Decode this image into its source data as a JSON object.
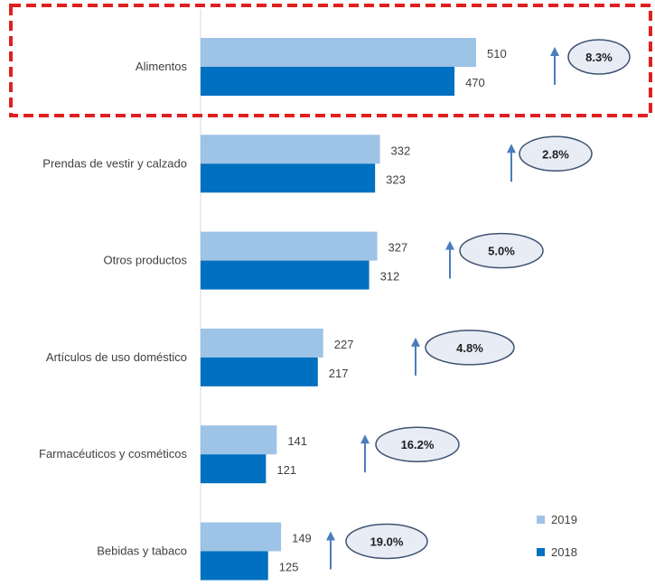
{
  "chart_data": {
    "type": "bar",
    "orientation": "horizontal",
    "categories": [
      "Alimentos",
      "Prendas de vestir y calzado",
      "Otros productos",
      "Artículos de uso doméstico",
      "Farmacéuticos y cosméticos",
      "Bebidas y tabaco"
    ],
    "series": [
      {
        "name": "2019",
        "color": "#9dc3e6",
        "values": [
          510,
          332,
          327,
          227,
          141,
          149
        ]
      },
      {
        "name": "2018",
        "color": "#0070c0",
        "values": [
          470,
          323,
          312,
          217,
          121,
          125
        ]
      }
    ],
    "growth_labels": [
      "8.3%",
      "2.8%",
      "5.0%",
      "4.8%",
      "16.2%",
      "19.0%"
    ],
    "highlighted_category": "Alimentos",
    "legend_position": "bottom-right",
    "colors": {
      "highlight_border": "#e02020",
      "arrow": "#4a7ebb",
      "ellipse_fill": "#e8ecf4",
      "ellipse_stroke": "#3e5372",
      "axis": "#d9d9d9",
      "text": "#404040"
    },
    "icons": [
      "up-arrow-icon"
    ]
  }
}
